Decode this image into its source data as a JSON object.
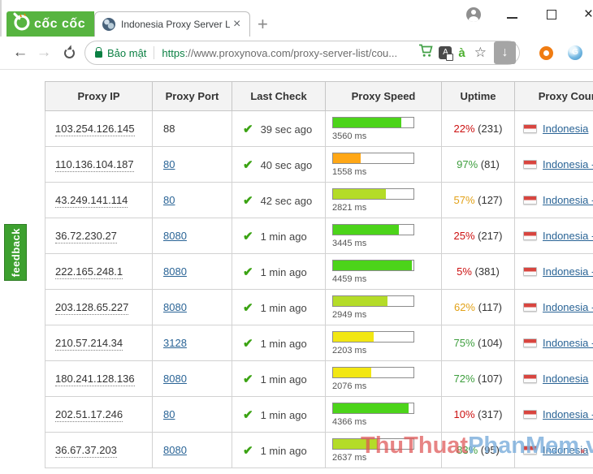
{
  "browser": {
    "logo_text": "cốc cốc",
    "tab_title": "Indonesia Proxy Server Lis",
    "tab_close_glyph": "×",
    "new_tab_label": "+",
    "window_close_glyph": "×",
    "security_label": "Bảo mật",
    "url_scheme": "https",
    "url_rest": "://www.proxynova.com/proxy-server-list/cou...",
    "vn_input_label": "à",
    "translate_label": "A",
    "star_glyph": "☆",
    "download_glyph": "↓",
    "ext_globe_label": "G"
  },
  "feedback_label": "feedback",
  "watermark": {
    "part_red": "ThuThuat",
    "part_blue": "PhanMem",
    "dot": ".",
    "suffix": "vn"
  },
  "palette": {
    "green": "#4cd41a",
    "lime": "#b4dc28",
    "yellow": "#f2e713",
    "orange": "#ffa716",
    "up_red": "#cc1111",
    "up_green": "#3d9e3d",
    "up_orange": "#e2a117"
  },
  "table": {
    "headers": [
      "Proxy IP",
      "Proxy Port",
      "Last Check",
      "Proxy Speed",
      "Uptime",
      "Proxy Country"
    ],
    "check_glyph": "✔",
    "rows": [
      {
        "ip": "103.254.126.145",
        "port": "88",
        "port_is_link": false,
        "last_check": "39 sec ago",
        "speed_ms": "3560 ms",
        "speed_pct": 85,
        "speed_color": "green",
        "uptime_pct": "22%",
        "uptime_count": "(231)",
        "uptime_color": "red",
        "country": "Indonesia"
      },
      {
        "ip": "110.136.104.187",
        "port": "80",
        "port_is_link": true,
        "last_check": "40 sec ago",
        "speed_ms": "1558 ms",
        "speed_pct": 34,
        "speed_color": "orange",
        "uptime_pct": "97%",
        "uptime_count": "(81)",
        "uptime_color": "green",
        "country": "Indonesia - B"
      },
      {
        "ip": "43.249.141.114",
        "port": "80",
        "port_is_link": true,
        "last_check": "42 sec ago",
        "speed_ms": "2821 ms",
        "speed_pct": 66,
        "speed_color": "lime",
        "uptime_pct": "57%",
        "uptime_count": "(127)",
        "uptime_color": "orange",
        "country": "Indonesia - B"
      },
      {
        "ip": "36.72.230.27",
        "port": "8080",
        "port_is_link": true,
        "last_check": "1 min ago",
        "speed_ms": "3445 ms",
        "speed_pct": 82,
        "speed_color": "green",
        "uptime_pct": "25%",
        "uptime_count": "(217)",
        "uptime_color": "red",
        "country": "Indonesia - K"
      },
      {
        "ip": "222.165.248.1",
        "port": "8080",
        "port_is_link": true,
        "last_check": "1 min ago",
        "speed_ms": "4459 ms",
        "speed_pct": 98,
        "speed_color": "green",
        "uptime_pct": "5%",
        "uptime_count": "(381)",
        "uptime_color": "red",
        "country": "Indonesia - J"
      },
      {
        "ip": "203.128.65.227",
        "port": "8080",
        "port_is_link": true,
        "last_check": "1 min ago",
        "speed_ms": "2949 ms",
        "speed_pct": 68,
        "speed_color": "lime",
        "uptime_pct": "62%",
        "uptime_count": "(117)",
        "uptime_color": "orange",
        "country": "Indonesia - J"
      },
      {
        "ip": "210.57.214.34",
        "port": "3128",
        "port_is_link": true,
        "last_check": "1 min ago",
        "speed_ms": "2203 ms",
        "speed_pct": 50,
        "speed_color": "yellow",
        "uptime_pct": "75%",
        "uptime_count": "(104)",
        "uptime_color": "green",
        "country": "Indonesia - S"
      },
      {
        "ip": "180.241.128.136",
        "port": "8080",
        "port_is_link": true,
        "last_check": "1 min ago",
        "speed_ms": "2076 ms",
        "speed_pct": 47,
        "speed_color": "yellow",
        "uptime_pct": "72%",
        "uptime_count": "(107)",
        "uptime_color": "green",
        "country": "Indonesia"
      },
      {
        "ip": "202.51.17.246",
        "port": "80",
        "port_is_link": true,
        "last_check": "1 min ago",
        "speed_ms": "4366 ms",
        "speed_pct": 94,
        "speed_color": "green",
        "uptime_pct": "10%",
        "uptime_count": "(317)",
        "uptime_color": "red",
        "country": "Indonesia - J"
      },
      {
        "ip": "36.67.37.203",
        "port": "8080",
        "port_is_link": true,
        "last_check": "1 min ago",
        "speed_ms": "2637 ms",
        "speed_pct": 56,
        "speed_color": "lime",
        "uptime_pct": "83%",
        "uptime_count": "(95)",
        "uptime_color": "green",
        "country": "Indonesia"
      }
    ]
  }
}
